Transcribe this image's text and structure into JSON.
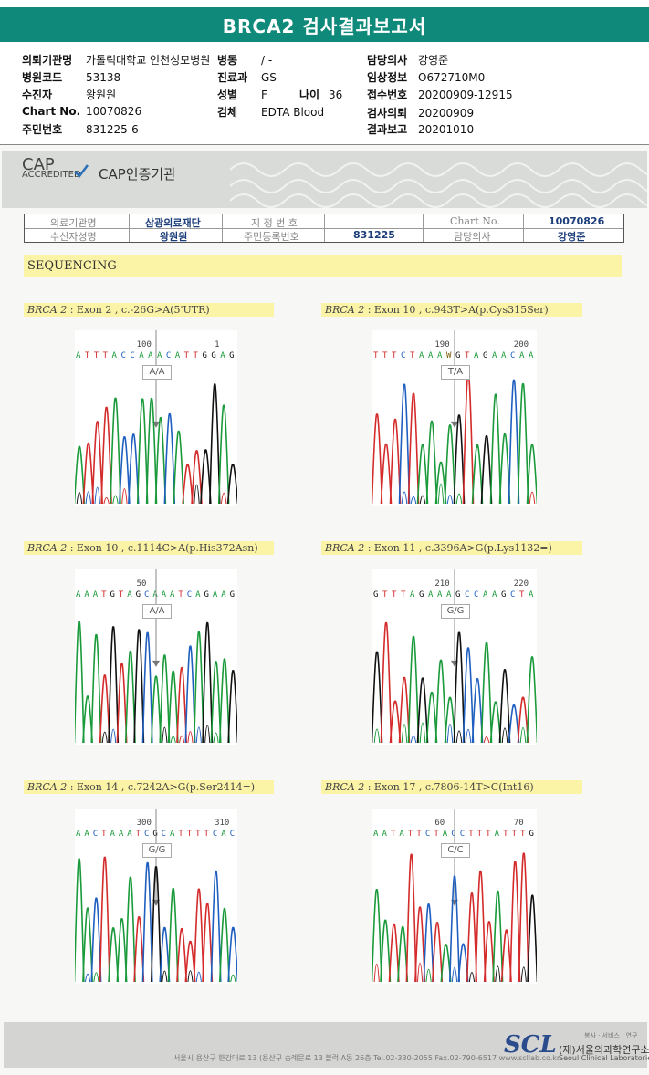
{
  "title": "BRCA2 검사결과보고서",
  "header": {
    "left": [
      {
        "label": "의뢰기관명",
        "value": "가톨릭대학교 인천성모병원"
      },
      {
        "label": "병원코드",
        "value": "53138"
      },
      {
        "label": "수진자",
        "value": "왕원원"
      },
      {
        "label": "Chart No.",
        "value": "10070826"
      },
      {
        "label": "주민번호",
        "value": "831225-6"
      }
    ],
    "middle": [
      {
        "label": "병동",
        "value": "/ -"
      },
      {
        "label": "진료과",
        "value": "GS"
      },
      {
        "label": "성별",
        "value": "F"
      },
      {
        "label": "검체",
        "value": "EDTA Blood"
      }
    ],
    "age": {
      "label": "나이",
      "value": "36"
    },
    "right": [
      {
        "label": "담당의사",
        "value": "강영준"
      },
      {
        "label": "임상정보",
        "value": "O672710M0"
      },
      {
        "label": "접수번호",
        "value": "20200909-12915"
      },
      {
        "label": "검사의뢰",
        "value": "20200909"
      },
      {
        "label": "결과보고",
        "value": "20201010"
      }
    ]
  },
  "cap": {
    "logo_text": "CAP",
    "accredited": "ACCREDITED",
    "label": "CAP인증기관"
  },
  "info_table": {
    "c1_label": "의료기관명",
    "c1_value": "삼광의료재단",
    "c2_label": "지 정 번 호",
    "c2_value": "",
    "c3_label": "Chart No.",
    "c3_value": "10070826",
    "c4_label": "수신자성명",
    "c4_value": "왕원원",
    "c5_label": "주민등록번호",
    "c5_value": "831225",
    "c6_label": "담당의사",
    "c6_value": "강영준"
  },
  "section": "SEQUENCING",
  "panels": [
    {
      "gene": "BRCA 2",
      "desc": " : Exon 2 , c.-26G>A(5'UTR)",
      "pos1": "100",
      "pos2": "1",
      "bases": "A T T T A C C A A A C A T T G G A G",
      "call": "A/A"
    },
    {
      "gene": "BRCA 2",
      "desc": " : Exon 10 , c.943T>A(p.Cys315Ser)",
      "pos1": "190",
      "pos2": "200",
      "bases": "T T T C T A A A W G T A G A A C A A",
      "call": "T/A"
    },
    {
      "gene": "BRCA 2",
      "desc": " : Exon 10 , c.1114C>A(p.His372Asn)",
      "pos1": "50",
      "pos2": "",
      "bases": "A A A T G T A G C A A A T C A G A A G",
      "call": "A/A"
    },
    {
      "gene": "BRCA 2",
      "desc": " : Exon 11 , c.3396A>G(p.Lys1132=)",
      "pos1": "210",
      "pos2": "220",
      "bases": "G T T T A G A A A G C C A A G C T A",
      "call": "G/G"
    },
    {
      "gene": "BRCA 2",
      "desc": " : Exon 14 , c.7242A>G(p.Ser2414=)",
      "pos1": "300",
      "pos2": "310",
      "bases": "A A C T A A A T C G C A T T T T C A C",
      "call": "G/G"
    },
    {
      "gene": "BRCA 2",
      "desc": " : Exon 17 , c.7806-14T>C(Int16)",
      "pos1": "60",
      "pos2": "70",
      "bases": "A A T A T T C T A C C T T T A T T T G",
      "call": "C/C"
    }
  ],
  "footer": {
    "address": "서울시 용산구 한강대로 13 (용산구 숭례문로 13 블럭 A동 26층  Tel.02-330-2055  Fax.02-790-6517  www.scllab.co.kr",
    "logo": "SCL",
    "motto": "봉사 · 서비스 · 연구",
    "name": "(재)서울의과학연구소",
    "name_en": "Seoul Clinical Laboratories"
  },
  "colors": {
    "title_bar": "#0f8a7a",
    "highlight": "#fbf3a6",
    "A": "#1a9a3a",
    "C": "#1f5fc0",
    "G": "#111111",
    "T": "#d42b2b"
  }
}
